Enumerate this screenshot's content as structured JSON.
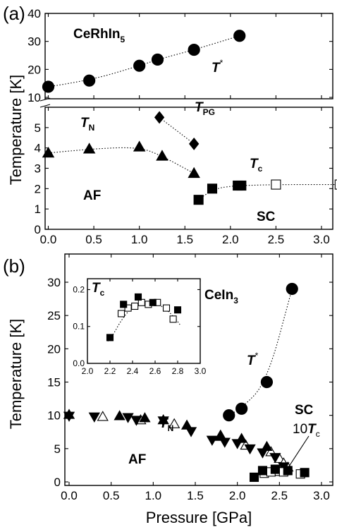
{
  "figure": {
    "x_axis_label": "Pressure [GPa]",
    "panel_a": {
      "panel_label": "(a)",
      "y_axis_label": "Temperature [K]",
      "compound": "CeRhIn",
      "compound_sub": "5",
      "label_tstar": "T",
      "label_tstar_sup": "*",
      "label_tn": "T",
      "label_tn_sub": "N",
      "label_tpg": "T",
      "label_tpg_sub": "PG",
      "label_tc": "T",
      "label_tc_sub": "c",
      "label_af": "AF",
      "label_sc": "SC"
    },
    "panel_b": {
      "panel_label": "(b)",
      "y_axis_label": "Temperature [K]",
      "compound": "CeIn",
      "compound_sub": "3",
      "label_tstar": "T",
      "label_tstar_sup": "*",
      "label_tn": "T",
      "label_tn_sub": "N",
      "label_af": "AF",
      "label_sc": "SC",
      "label_10tc_prefix": "10",
      "label_10tc_t": "T",
      "label_10tc_sub": "c",
      "inset_label": "T",
      "inset_label_sub": "c"
    }
  },
  "chart_data": [
    {
      "type": "scatter",
      "title": "",
      "xlabel": "Pressure [GPa]",
      "ylabel": "Temperature [K]",
      "xlim": [
        -0.05,
        3.2
      ],
      "ylim_lower": [
        0,
        6
      ],
      "ylim_upper": [
        10,
        40
      ],
      "axis_break": [
        6,
        10
      ],
      "x_ticks": [
        0.0,
        0.5,
        1.0,
        1.5,
        2.0,
        2.5,
        3.0
      ],
      "y_ticks_lower": [
        0,
        1,
        2,
        3,
        4,
        5
      ],
      "y_ticks_upper": [
        10,
        20,
        30,
        40
      ],
      "grid": false,
      "series": [
        {
          "name": "T*",
          "marker": "circle-filled",
          "x": [
            0.0,
            0.45,
            1.0,
            1.2,
            1.6,
            2.1
          ],
          "y": [
            13.8,
            16.0,
            21.3,
            23.5,
            27.0,
            32.0
          ]
        },
        {
          "name": "TN",
          "marker": "triangle-filled",
          "x": [
            0.0,
            0.45,
            1.0,
            1.25,
            1.6
          ],
          "y": [
            3.75,
            3.95,
            4.05,
            3.6,
            2.75
          ]
        },
        {
          "name": "TPG",
          "marker": "diamond-filled",
          "x": [
            1.22,
            1.6
          ],
          "y": [
            5.5,
            4.2
          ]
        },
        {
          "name": "Tc",
          "marker": "square-filled",
          "x": [
            1.65,
            1.8,
            2.08,
            2.12
          ],
          "y": [
            1.45,
            2.0,
            2.15,
            2.15
          ]
        },
        {
          "name": "Tc",
          "marker": "square-open",
          "x": [
            2.5,
            3.2
          ],
          "y": [
            2.2,
            2.2
          ]
        }
      ]
    },
    {
      "type": "scatter",
      "title": "",
      "xlabel": "Pressure [GPa]",
      "ylabel": "Temperature [K]",
      "xlim": [
        -0.05,
        3.2
      ],
      "ylim": [
        0,
        32
      ],
      "x_ticks": [
        0.0,
        0.5,
        1.0,
        1.5,
        2.0,
        2.5,
        3.0
      ],
      "y_ticks": [
        0,
        5,
        10,
        15,
        20,
        25,
        30
      ],
      "grid": false,
      "series": [
        {
          "name": "T*",
          "marker": "circle-filled",
          "x": [
            1.9,
            2.05,
            2.35,
            2.65
          ],
          "y": [
            10.0,
            11.0,
            15.0,
            29.0
          ]
        },
        {
          "name": "TN",
          "marker": "triangle-down-filled",
          "x": [
            0.0,
            0.3,
            0.7,
            0.8,
            1.12,
            1.45,
            1.7,
            1.85,
            2.0,
            2.15,
            2.3,
            2.45,
            2.55
          ],
          "y": [
            9.9,
            9.8,
            9.7,
            9.3,
            9.2,
            7.6,
            6.3,
            6.0,
            5.8,
            5.0,
            4.4,
            3.7,
            2.3
          ]
        },
        {
          "name": "TN",
          "marker": "triangle-up-filled",
          "x": [
            0.0,
            0.6,
            0.9,
            1.12,
            1.4,
            1.8,
            2.05,
            2.35
          ],
          "y": [
            10.1,
            9.9,
            9.6,
            9.3,
            8.5,
            6.8,
            6.5,
            5.3
          ]
        },
        {
          "name": "TN",
          "marker": "triangle-open",
          "x": [
            0.4,
            0.85,
            1.25,
            1.8,
            2.1,
            2.4,
            2.5,
            2.55,
            2.6
          ],
          "y": [
            9.8,
            9.3,
            8.7,
            7.0,
            5.5,
            4.5,
            3.5,
            2.8,
            2.2
          ]
        },
        {
          "name": "10Tc",
          "marker": "square-filled",
          "x": [
            2.2,
            2.3,
            2.45,
            2.6,
            2.8
          ],
          "y": [
            0.7,
            1.7,
            1.9,
            1.7,
            1.4
          ]
        },
        {
          "name": "10Tc",
          "marker": "square-open",
          "x": [
            2.32,
            2.4,
            2.5,
            2.55,
            2.75
          ],
          "y": [
            1.3,
            1.5,
            1.6,
            1.5,
            1.2
          ]
        }
      ],
      "inset": {
        "type": "scatter",
        "xlim": [
          2.0,
          3.0
        ],
        "ylim": [
          0.0,
          0.22
        ],
        "x_ticks": [
          2.0,
          2.2,
          2.4,
          2.6,
          2.8,
          3.0
        ],
        "y_ticks": [
          0.0,
          0.1,
          0.2
        ],
        "series": [
          {
            "name": "Tc",
            "marker": "square-filled",
            "x": [
              2.2,
              2.32,
              2.45,
              2.58,
              2.8
            ],
            "y": [
              0.07,
              0.16,
              0.18,
              0.165,
              0.145
            ]
          },
          {
            "name": "Tc",
            "marker": "square-open",
            "x": [
              2.3,
              2.36,
              2.42,
              2.48,
              2.54,
              2.62,
              2.7,
              2.76
            ],
            "y": [
              0.135,
              0.15,
              0.155,
              0.165,
              0.16,
              0.165,
              0.15,
              0.12
            ]
          }
        ]
      }
    }
  ]
}
